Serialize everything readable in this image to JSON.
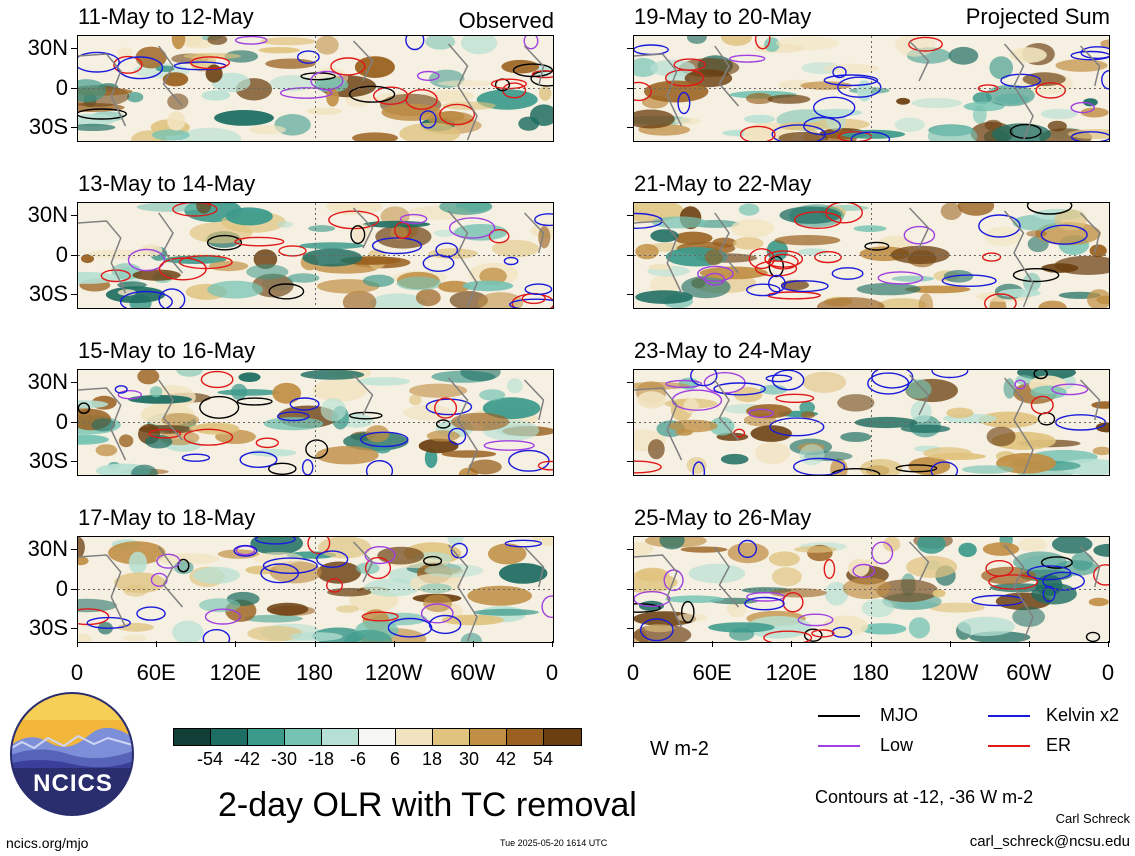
{
  "panels_left": [
    {
      "title": "11-May to 12-May",
      "tag": "Observed"
    },
    {
      "title": "13-May to 14-May",
      "tag": ""
    },
    {
      "title": "15-May to 16-May",
      "tag": ""
    },
    {
      "title": "17-May to 18-May",
      "tag": ""
    }
  ],
  "panels_right": [
    {
      "title": "19-May to 20-May",
      "tag": "Projected Sum"
    },
    {
      "title": "21-May to 22-May",
      "tag": ""
    },
    {
      "title": "23-May to 24-May",
      "tag": ""
    },
    {
      "title": "25-May to 26-May",
      "tag": ""
    }
  ],
  "lat_labels": [
    "30N",
    "0",
    "30S"
  ],
  "lon_labels": [
    "0",
    "60E",
    "120E",
    "180",
    "120W",
    "60W",
    "0"
  ],
  "colorbar": {
    "colors": [
      "#0f3f36",
      "#1e6d62",
      "#3c9a8b",
      "#76c3b3",
      "#b6e0d3",
      "#f6f6f2",
      "#f1e3bf",
      "#dfc37f",
      "#c08f45",
      "#9a6120",
      "#6b3f10"
    ],
    "ticks": [
      "-54",
      "-42",
      "-30",
      "-18",
      "-6",
      "6",
      "18",
      "30",
      "42",
      "54"
    ],
    "units": "W m-2"
  },
  "legend": [
    {
      "label": "MJO",
      "color": "#000000"
    },
    {
      "label": "Kelvin x2",
      "color": "#1a1adc"
    },
    {
      "label": "Low",
      "color": "#a040e0"
    },
    {
      "label": "ER",
      "color": "#e01818"
    }
  ],
  "logo_text": "NCICS",
  "main_title": "2-day OLR with TC removal",
  "contours_note": "Contours at -12, -36 W m-2",
  "author": "Carl Schreck",
  "email": "carl_schreck@ncsu.edu",
  "site": "ncics.org/mjo",
  "timestamp": "Tue 2025-05-20 1614 UTC"
}
